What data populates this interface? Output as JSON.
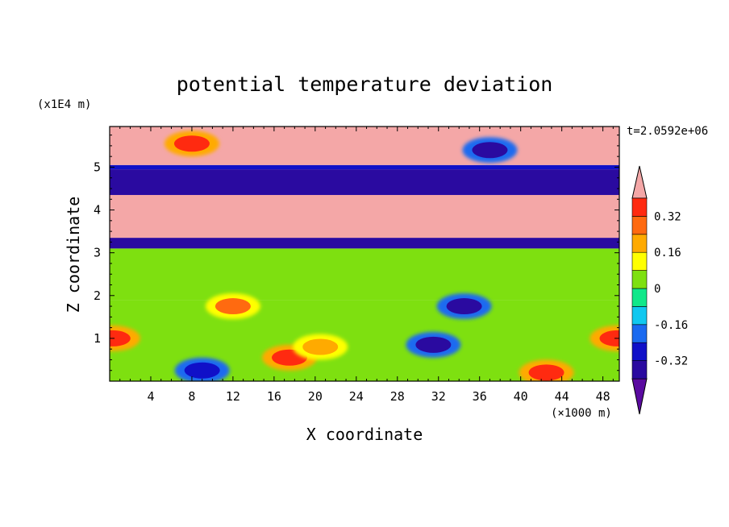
{
  "chart_data": {
    "type": "heatmap",
    "title": "potential temperature deviation",
    "xlabel": "X coordinate",
    "ylabel": "Z coordinate",
    "x_units": "(×1000 m)",
    "y_units": "(x1E4 m)",
    "time_label": "t=2.0592e+06",
    "xlim": [
      0,
      49.6
    ],
    "ylim": [
      0,
      5.95
    ],
    "x_ticks": [
      "4",
      "8",
      "12",
      "16",
      "20",
      "24",
      "28",
      "32",
      "36",
      "40",
      "44",
      "48"
    ],
    "y_ticks": [
      "1",
      "2",
      "3",
      "4",
      "5"
    ],
    "colorbar": {
      "levels": [
        -0.4,
        -0.32,
        -0.24,
        -0.16,
        -0.08,
        0,
        0.08,
        0.16,
        0.24,
        0.32,
        0.4
      ],
      "labeled_values": [
        "0.32",
        "0.16",
        "0",
        "-0.16",
        "-0.32"
      ],
      "colors": [
        "#5a0aa0",
        "#2a0aa0",
        "#1010c8",
        "#1a6af0",
        "#10c8f0",
        "#10e88a",
        "#7ee010",
        "#ffff00",
        "#ffaa00",
        "#ff6a10",
        "#ff2a10",
        "#f4a7a7"
      ],
      "extend": "both"
    },
    "bands": [
      {
        "z": [
          0.0,
          1.9
        ],
        "value": 0.0
      },
      {
        "z": [
          1.9,
          3.1
        ],
        "value": 0.0
      },
      {
        "z": [
          3.1,
          3.35
        ],
        "value": -0.4
      },
      {
        "z": [
          3.35,
          4.35
        ],
        "value": 0.4
      },
      {
        "z": [
          4.35,
          4.95
        ],
        "value": -0.4
      },
      {
        "z": [
          4.95,
          5.05
        ],
        "value": -0.32
      },
      {
        "z": [
          5.05,
          5.95
        ],
        "value": 0.4
      }
    ],
    "features": [
      {
        "x": 31.5,
        "z": 0.85,
        "value": -0.36
      },
      {
        "x": 9.0,
        "z": 0.25,
        "value": -0.3
      },
      {
        "x": 17.5,
        "z": 0.55,
        "value": 0.32
      },
      {
        "x": 20.5,
        "z": 0.8,
        "value": 0.16
      },
      {
        "x": 42.5,
        "z": 0.2,
        "value": 0.32
      },
      {
        "x": 0.3,
        "z": 1.0,
        "value": 0.32
      },
      {
        "x": 49.4,
        "z": 1.0,
        "value": 0.32
      },
      {
        "x": 12.0,
        "z": 1.75,
        "value": 0.24
      },
      {
        "x": 34.5,
        "z": 1.75,
        "value": -0.36
      },
      {
        "x": 37.0,
        "z": 5.4,
        "value": -0.4
      },
      {
        "x": 8.0,
        "z": 5.55,
        "value": 0.32
      }
    ]
  }
}
